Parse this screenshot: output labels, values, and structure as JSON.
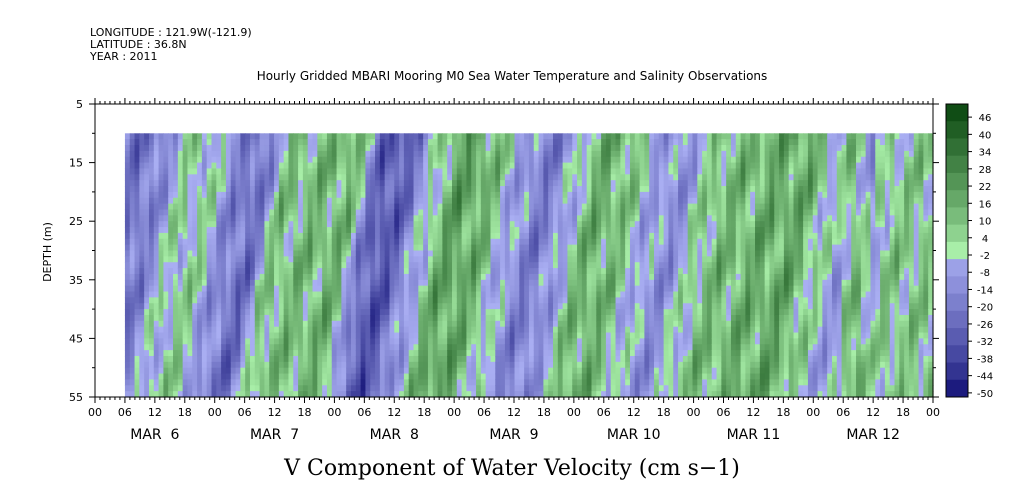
{
  "meta": {
    "longitude": "LONGITUDE : 121.9W(-121.9)",
    "latitude": "LATITUDE : 36.8N",
    "year": "YEAR : 2011"
  },
  "chart_data": {
    "type": "heatmap",
    "title": "Hourly Gridded MBARI Mooring M0 Sea Water Temperature and Salinity Observations",
    "xlabel": "V Component of Water Velocity (cm s−1)",
    "ylabel": "DEPTH (m)",
    "ylim": [
      55,
      5
    ],
    "y_ticks": [
      5,
      15,
      25,
      35,
      45,
      55
    ],
    "x_range_hours": [
      0,
      168
    ],
    "data_start_hour": 6,
    "data_depth_range": [
      10,
      55
    ],
    "x_hour_labels": [
      "00",
      "06",
      "12",
      "18",
      "00",
      "06",
      "12",
      "18",
      "00",
      "06",
      "12",
      "18",
      "00",
      "06",
      "12",
      "18",
      "00",
      "06",
      "12",
      "18",
      "00",
      "06",
      "12",
      "18",
      "00",
      "06",
      "12",
      "18",
      "00"
    ],
    "day_labels": [
      "MAR  6",
      "MAR  7",
      "MAR  8",
      "MAR  9",
      "MAR 10",
      "MAR 11",
      "MAR 12"
    ],
    "colorbar": {
      "labels": [
        "46",
        "40",
        "34",
        "28",
        "22",
        "16",
        "10",
        "4",
        "-2",
        "-8",
        "-14",
        "-20",
        "-26",
        "-32",
        "-38",
        "-44",
        "-50"
      ],
      "low_color": "#0b0a70",
      "mid_low_color": "#a9aef2",
      "mid_high_color": "#a8eea8",
      "high_color": "#0d4a12"
    },
    "note_pattern_phase_bands": [
      {
        "hour": 10,
        "value": -20
      },
      {
        "hour": 22,
        "value": 6
      },
      {
        "hour": 34,
        "value": -22
      },
      {
        "hour": 40,
        "value": 10
      },
      {
        "hour": 52,
        "value": 14
      },
      {
        "hour": 60,
        "value": -30
      },
      {
        "hour": 76,
        "value": 20
      },
      {
        "hour": 92,
        "value": -16
      },
      {
        "hour": 104,
        "value": 16
      },
      {
        "hour": 118,
        "value": -10
      },
      {
        "hour": 128,
        "value": 12
      },
      {
        "hour": 142,
        "value": 18
      },
      {
        "hour": 154,
        "value": -6
      },
      {
        "hour": 164,
        "value": 8
      }
    ]
  }
}
